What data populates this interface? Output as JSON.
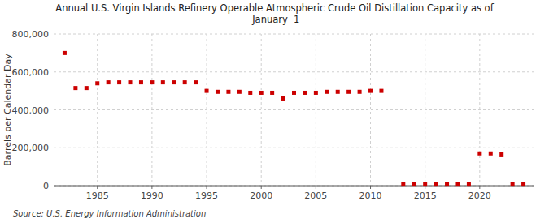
{
  "chart_data": {
    "type": "scatter",
    "title": "Annual U.S. Virgin Islands Refinery Operable Atmospheric Crude Oil Distillation Capacity as of\n January  1",
    "y_label": "Barrels per Calendar Day",
    "source": "Source: U.S. Energy Information Administration",
    "color": "#cc0000",
    "marker": "square",
    "grid": true,
    "ylim": [
      0,
      800000
    ],
    "yticks": [
      0,
      {
        "value": 200000,
        "label": "200,000"
      },
      {
        "value": 400000,
        "label": "400,000"
      },
      {
        "value": 600000,
        "label": "600,000"
      },
      {
        "value": 800000,
        "label": "800,000"
      }
    ],
    "xlim": [
      1981,
      2025
    ],
    "xticks": [
      1985,
      1990,
      1995,
      2000,
      2005,
      2010,
      2015,
      2020
    ],
    "x": [
      1982,
      1983,
      1984,
      1985,
      1986,
      1987,
      1988,
      1989,
      1990,
      1991,
      1992,
      1993,
      1994,
      1995,
      1996,
      1997,
      1998,
      1999,
      2000,
      2001,
      2002,
      2003,
      2004,
      2005,
      2006,
      2007,
      2008,
      2009,
      2010,
      2011,
      2013,
      2014,
      2015,
      2016,
      2017,
      2018,
      2019,
      2020,
      2021,
      2022,
      2023,
      2024
    ],
    "values": [
      700000,
      515000,
      515000,
      540000,
      545000,
      545000,
      545000,
      545000,
      545000,
      545000,
      545000,
      545000,
      545000,
      500000,
      495000,
      495000,
      495000,
      490000,
      490000,
      490000,
      460000,
      490000,
      490000,
      490000,
      495000,
      495000,
      495000,
      495000,
      500000,
      500000,
      10000,
      10000,
      10000,
      10000,
      10000,
      10000,
      10000,
      170000,
      170000,
      165000,
      10000,
      10000
    ]
  }
}
